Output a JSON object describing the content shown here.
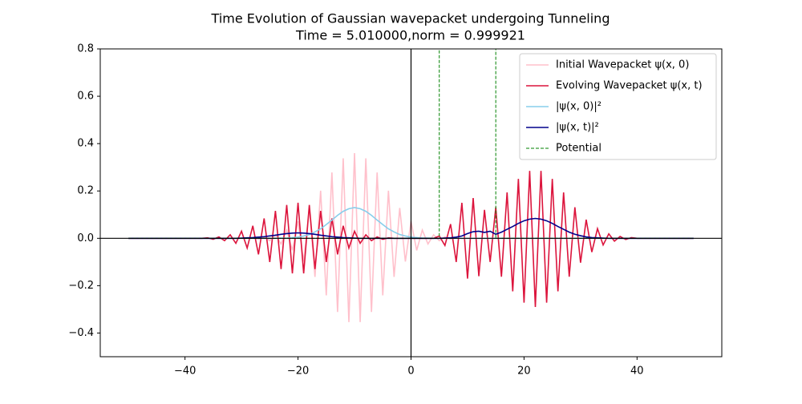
{
  "chart_data": {
    "type": "line",
    "title": "Time Evolution of Gaussian wavepacket undergoing Tunneling",
    "subtitle": "Time =  5.010000,norm =  0.999921",
    "x": [
      -50,
      -49,
      -48,
      -47,
      -46,
      -45,
      -44,
      -43,
      -42,
      -41,
      -40,
      -39,
      -38,
      -37,
      -36,
      -35,
      -34,
      -33,
      -32,
      -31,
      -30,
      -29,
      -28,
      -27,
      -26,
      -25,
      -24,
      -23,
      -22,
      -21,
      -20,
      -19,
      -18,
      -17,
      -16,
      -15,
      -14,
      -13,
      -12,
      -11,
      -10,
      -9,
      -8,
      -7,
      -6,
      -5,
      -4,
      -3,
      -2,
      -1,
      0,
      1,
      2,
      3,
      4,
      5,
      6,
      7,
      8,
      9,
      10,
      11,
      12,
      13,
      14,
      15,
      16,
      17,
      18,
      19,
      20,
      21,
      22,
      23,
      24,
      25,
      26,
      27,
      28,
      29,
      30,
      31,
      32,
      33,
      34,
      35,
      36,
      37,
      38,
      39,
      40,
      41,
      42,
      43,
      44,
      45,
      46,
      47,
      48,
      49,
      50
    ],
    "series": [
      {
        "name": "Initial Wavepacket ψ(x, 0)",
        "color": "#ffc0cb",
        "values": [
          0,
          0,
          0,
          0,
          0,
          0,
          0,
          0,
          0,
          0,
          0,
          0,
          0,
          0,
          0,
          0,
          0,
          0,
          0,
          0,
          0,
          -0.001,
          0.002,
          -0.003,
          0.006,
          -0.01,
          0.015,
          -0.024,
          0.035,
          -0.051,
          0.072,
          -0.098,
          0.128,
          -0.163,
          0.201,
          -0.241,
          0.278,
          -0.311,
          0.338,
          -0.354,
          0.36,
          -0.354,
          0.338,
          -0.311,
          0.278,
          -0.241,
          0.201,
          -0.163,
          0.128,
          -0.098,
          0.072,
          -0.051,
          0.035,
          -0.024,
          0.015,
          -0.01,
          0.006,
          -0.003,
          0.002,
          -0.001,
          0,
          0,
          0,
          0,
          0,
          0,
          0,
          0,
          0,
          0,
          0,
          0,
          0,
          0,
          0,
          0,
          0,
          0,
          0,
          0,
          0,
          0,
          0,
          0,
          0,
          0,
          0,
          0,
          0,
          0,
          0,
          0,
          0,
          0,
          0,
          0,
          0,
          0,
          0,
          0,
          0
        ]
      },
      {
        "name": "Evolving Wavepacket ψ(x, t)",
        "color": "#dc143c",
        "values": [
          0,
          0,
          0,
          0,
          0,
          0,
          0,
          0,
          0,
          0,
          0,
          0,
          0,
          0,
          0.002,
          -0.004,
          0.006,
          -0.01,
          0.015,
          -0.021,
          0.03,
          -0.041,
          0.053,
          -0.068,
          0.084,
          -0.1,
          0.116,
          -0.13,
          0.141,
          -0.148,
          0.15,
          -0.148,
          0.141,
          -0.13,
          0.116,
          -0.1,
          0.084,
          -0.068,
          0.053,
          -0.041,
          0.03,
          -0.021,
          0.015,
          -0.01,
          0.006,
          -0.004,
          0.002,
          0,
          0,
          0,
          0,
          0,
          0,
          0,
          0,
          0.01,
          -0.03,
          0.06,
          -0.1,
          0.15,
          -0.17,
          0.17,
          -0.16,
          0.12,
          -0.1,
          0.131,
          -0.162,
          0.194,
          -0.224,
          0.251,
          -0.272,
          0.285,
          -0.29,
          0.285,
          -0.272,
          0.251,
          -0.224,
          0.194,
          -0.162,
          0.131,
          -0.103,
          0.079,
          -0.058,
          0.041,
          -0.028,
          0.019,
          -0.012,
          0.008,
          -0.005,
          0.003,
          0,
          0,
          0,
          0,
          0,
          0,
          0,
          0,
          0,
          0,
          0
        ]
      },
      {
        "name": "|ψ(x, 0)|²",
        "color": "#87ceeb",
        "values": [
          0,
          0,
          0,
          0,
          0,
          0,
          0,
          0,
          0,
          0,
          0,
          0,
          0,
          0,
          0,
          0,
          0,
          0,
          0,
          0,
          0,
          0,
          0,
          0,
          0,
          0,
          0,
          0.001,
          0.001,
          0.003,
          0.005,
          0.01,
          0.016,
          0.027,
          0.04,
          0.058,
          0.077,
          0.097,
          0.114,
          0.125,
          0.13,
          0.125,
          0.114,
          0.097,
          0.077,
          0.058,
          0.04,
          0.027,
          0.016,
          0.01,
          0.005,
          0.003,
          0.001,
          0.001,
          0,
          0,
          0,
          0,
          0,
          0,
          0,
          0,
          0,
          0,
          0,
          0,
          0,
          0,
          0,
          0,
          0,
          0,
          0,
          0,
          0,
          0,
          0,
          0,
          0,
          0,
          0,
          0,
          0,
          0,
          0,
          0,
          0,
          0,
          0,
          0,
          0,
          0,
          0,
          0,
          0,
          0,
          0,
          0,
          0,
          0,
          0
        ]
      },
      {
        "name": "|ψ(x, t)|²",
        "color": "#00008b",
        "values": [
          0,
          0,
          0,
          0,
          0,
          0,
          0,
          0,
          0,
          0,
          0,
          0,
          0,
          0,
          0,
          0,
          0,
          0,
          0,
          0,
          0.001,
          0.002,
          0.003,
          0.005,
          0.007,
          0.01,
          0.013,
          0.017,
          0.02,
          0.022,
          0.023,
          0.022,
          0.02,
          0.017,
          0.013,
          0.01,
          0.007,
          0.005,
          0.003,
          0.002,
          0.001,
          0,
          0,
          0,
          0,
          0,
          0,
          0,
          0,
          0,
          0,
          0,
          0,
          0,
          0,
          0,
          0.001,
          0.002,
          0.005,
          0.01,
          0.02,
          0.028,
          0.03,
          0.025,
          0.03,
          0.017,
          0.026,
          0.038,
          0.05,
          0.063,
          0.074,
          0.081,
          0.084,
          0.081,
          0.074,
          0.063,
          0.05,
          0.038,
          0.026,
          0.017,
          0.011,
          0.006,
          0.003,
          0.002,
          0.001,
          0,
          0,
          0,
          0,
          0,
          0,
          0,
          0,
          0,
          0,
          0,
          0,
          0,
          0,
          0,
          0
        ]
      },
      {
        "name": "Potential",
        "color": "#008000",
        "linestyle": "dashed",
        "x": [
          -50,
          5,
          5,
          15,
          15,
          50
        ],
        "values": [
          0,
          0,
          1,
          1,
          0,
          0
        ]
      }
    ],
    "xlim": [
      -55,
      55
    ],
    "ylim": [
      -0.5,
      0.8
    ],
    "xticks": [
      -40,
      -20,
      0,
      20,
      40
    ],
    "yticks": [
      -0.4,
      -0.2,
      {
        "value": 0,
        "label": "0.0"
      },
      0.2,
      0.4,
      0.6,
      0.8
    ],
    "legend": "upper right"
  }
}
